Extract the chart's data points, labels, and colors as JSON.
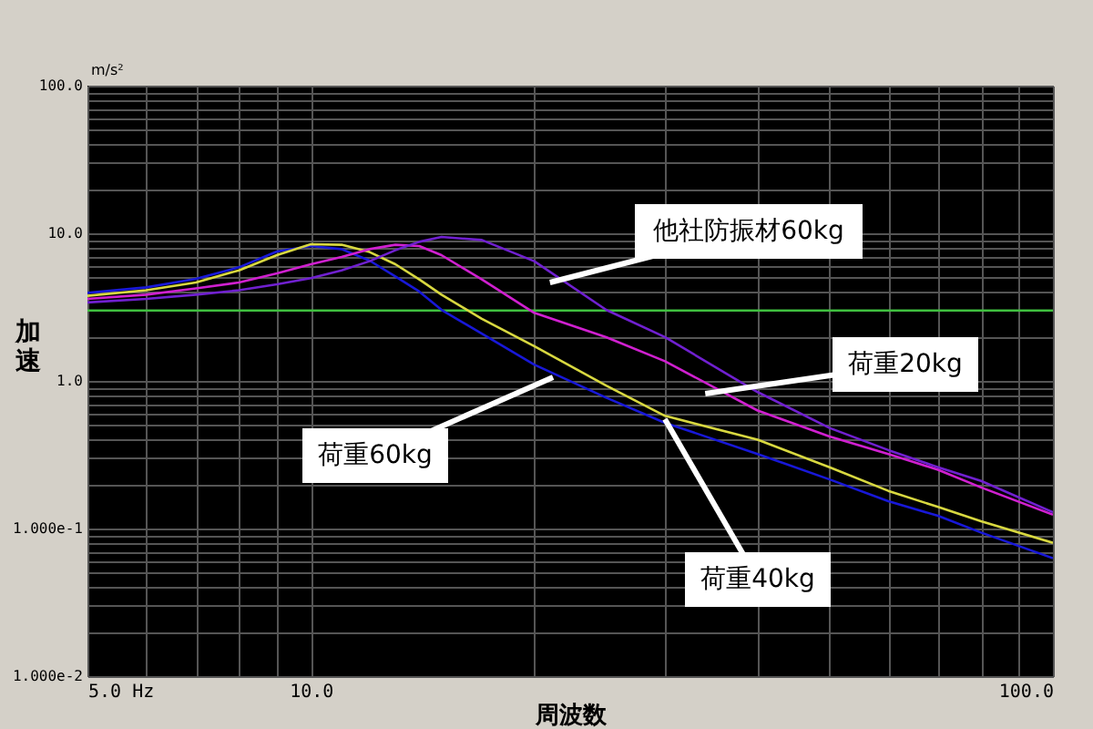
{
  "chart_data": {
    "type": "line",
    "xlabel": "周波数",
    "ylabel": "加速",
    "log": "xy",
    "grid": true,
    "marker": "none",
    "line_style": "solid",
    "xlim": [
      5,
      100
    ],
    "ylim": [
      0.01,
      100
    ],
    "xticks": [
      {
        "value": 5,
        "label": "5.0 Hz"
      },
      {
        "value": 6,
        "label": null
      },
      {
        "value": 7,
        "label": null
      },
      {
        "value": 8,
        "label": null
      },
      {
        "value": 9,
        "label": null
      },
      {
        "value": 10,
        "label": "10.0"
      },
      {
        "value": 20,
        "label": null
      },
      {
        "value": 30,
        "label": null
      },
      {
        "value": 40,
        "label": null
      },
      {
        "value": 50,
        "label": null
      },
      {
        "value": 60,
        "label": null
      },
      {
        "value": 70,
        "label": null
      },
      {
        "value": 80,
        "label": null
      },
      {
        "value": 90,
        "label": null
      },
      {
        "value": 100,
        "label": "100.0"
      }
    ],
    "yticks": [
      {
        "value": 0.01,
        "label": "1.000e-2"
      },
      {
        "value": 0.02,
        "label": null
      },
      {
        "value": 0.03,
        "label": null
      },
      {
        "value": 0.04,
        "label": null
      },
      {
        "value": 0.05,
        "label": null
      },
      {
        "value": 0.06,
        "label": null
      },
      {
        "value": 0.07,
        "label": null
      },
      {
        "value": 0.08,
        "label": null
      },
      {
        "value": 0.09,
        "label": null
      },
      {
        "value": 0.1,
        "label": "1.000e-1"
      },
      {
        "value": 0.2,
        "label": null
      },
      {
        "value": 0.3,
        "label": null
      },
      {
        "value": 0.4,
        "label": null
      },
      {
        "value": 0.5,
        "label": null
      },
      {
        "value": 0.6,
        "label": null
      },
      {
        "value": 0.7,
        "label": null
      },
      {
        "value": 0.8,
        "label": null
      },
      {
        "value": 0.9,
        "label": null
      },
      {
        "value": 1,
        "label": "1.0"
      },
      {
        "value": 2,
        "label": null
      },
      {
        "value": 3,
        "label": null
      },
      {
        "value": 4,
        "label": null
      },
      {
        "value": 5,
        "label": null
      },
      {
        "value": 6,
        "label": null
      },
      {
        "value": 7,
        "label": null
      },
      {
        "value": 8,
        "label": null
      },
      {
        "value": 9,
        "label": null
      },
      {
        "value": 10,
        "label": "10.0"
      },
      {
        "value": 20,
        "label": null
      },
      {
        "value": 30,
        "label": null
      },
      {
        "value": 40,
        "label": null
      },
      {
        "value": 50,
        "label": null
      },
      {
        "value": 60,
        "label": null
      },
      {
        "value": 70,
        "label": null
      },
      {
        "value": 80,
        "label": null
      },
      {
        "value": 90,
        "label": null
      },
      {
        "value": 100,
        "label": "100.0"
      }
    ],
    "x": [
      5,
      6,
      7,
      8,
      9,
      10,
      11,
      12,
      13,
      14,
      15,
      17,
      20,
      25,
      30,
      40,
      50,
      60,
      70,
      80,
      100
    ],
    "series": [
      {
        "color": "#1818d8",
        "values": [
          3.95,
          4.3,
          4.91,
          5.88,
          7.53,
          8.2,
          7.81,
          6.53,
          5.1,
          4.03,
          3.03,
          2.09,
          1.29,
          0.77,
          0.52,
          0.32,
          0.215,
          0.153,
          0.122,
          0.094,
          0.063
        ]
      },
      {
        "color": "#d8d840",
        "values": [
          3.77,
          4.11,
          4.64,
          5.61,
          7.11,
          8.43,
          8.36,
          7.46,
          6.17,
          4.87,
          3.84,
          2.63,
          1.72,
          0.93,
          0.58,
          0.4,
          0.26,
          0.18,
          0.14,
          0.112,
          0.08
        ]
      },
      {
        "color": "#d020d0",
        "values": [
          3.59,
          3.84,
          4.23,
          4.64,
          5.35,
          6.17,
          6.91,
          7.81,
          8.36,
          8.2,
          7.11,
          4.87,
          2.89,
          1.98,
          1.36,
          0.63,
          0.42,
          0.32,
          0.25,
          0.19,
          0.124
        ]
      },
      {
        "color": "#7020d0",
        "values": [
          3.4,
          3.59,
          3.84,
          4.11,
          4.51,
          4.96,
          5.61,
          6.47,
          7.68,
          8.75,
          9.44,
          9.0,
          6.47,
          3.03,
          1.98,
          0.84,
          0.48,
          0.34,
          0.26,
          0.21,
          0.129
        ]
      }
    ],
    "ref_lines": [
      {
        "axis": "y",
        "value": 3,
        "color": "#40c040"
      }
    ],
    "annotations": [
      "m/s²",
      {
        "text": "他社防振材60kg",
        "x": 21,
        "y": 4.64
      },
      {
        "text": "荷重20kg",
        "x": 34,
        "y": 0.82
      },
      {
        "text": "荷重60kg",
        "x": 21.2,
        "y": 1.06
      },
      {
        "text": "荷重40kg",
        "x": 30,
        "y": 0.55
      }
    ]
  }
}
